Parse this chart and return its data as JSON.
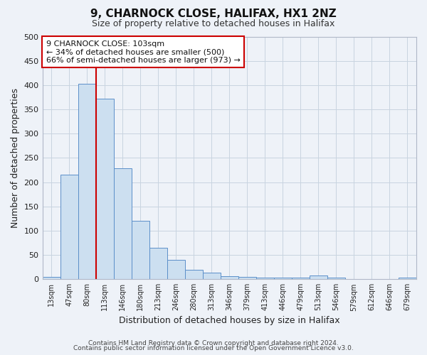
{
  "title": "9, CHARNOCK CLOSE, HALIFAX, HX1 2NZ",
  "subtitle": "Size of property relative to detached houses in Halifax",
  "xlabel": "Distribution of detached houses by size in Halifax",
  "ylabel": "Number of detached properties",
  "bar_labels": [
    "13sqm",
    "47sqm",
    "80sqm",
    "113sqm",
    "146sqm",
    "180sqm",
    "213sqm",
    "246sqm",
    "280sqm",
    "313sqm",
    "346sqm",
    "379sqm",
    "413sqm",
    "446sqm",
    "479sqm",
    "513sqm",
    "546sqm",
    "579sqm",
    "612sqm",
    "646sqm",
    "679sqm"
  ],
  "bar_values": [
    5,
    215,
    403,
    372,
    228,
    120,
    65,
    40,
    20,
    13,
    6,
    5,
    3,
    3,
    3,
    8,
    3,
    0,
    0,
    0,
    3
  ],
  "bar_color": "#ccdff0",
  "bar_edge_color": "#5b8fc9",
  "grid_color": "#c8d4e0",
  "background_color": "#eef2f8",
  "plot_bg_color": "#eef2f8",
  "vline_x": 2.5,
  "vline_color": "#cc0000",
  "annotation_line1": "9 CHARNOCK CLOSE: 103sqm",
  "annotation_line2": "← 34% of detached houses are smaller (500)",
  "annotation_line3": "66% of semi-detached houses are larger (973) →",
  "annotation_box_color": "#ffffff",
  "annotation_box_edge": "#cc0000",
  "footer1": "Contains HM Land Registry data © Crown copyright and database right 2024.",
  "footer2": "Contains public sector information licensed under the Open Government Licence v3.0.",
  "ylim": [
    0,
    500
  ],
  "yticks": [
    0,
    50,
    100,
    150,
    200,
    250,
    300,
    350,
    400,
    450,
    500
  ]
}
